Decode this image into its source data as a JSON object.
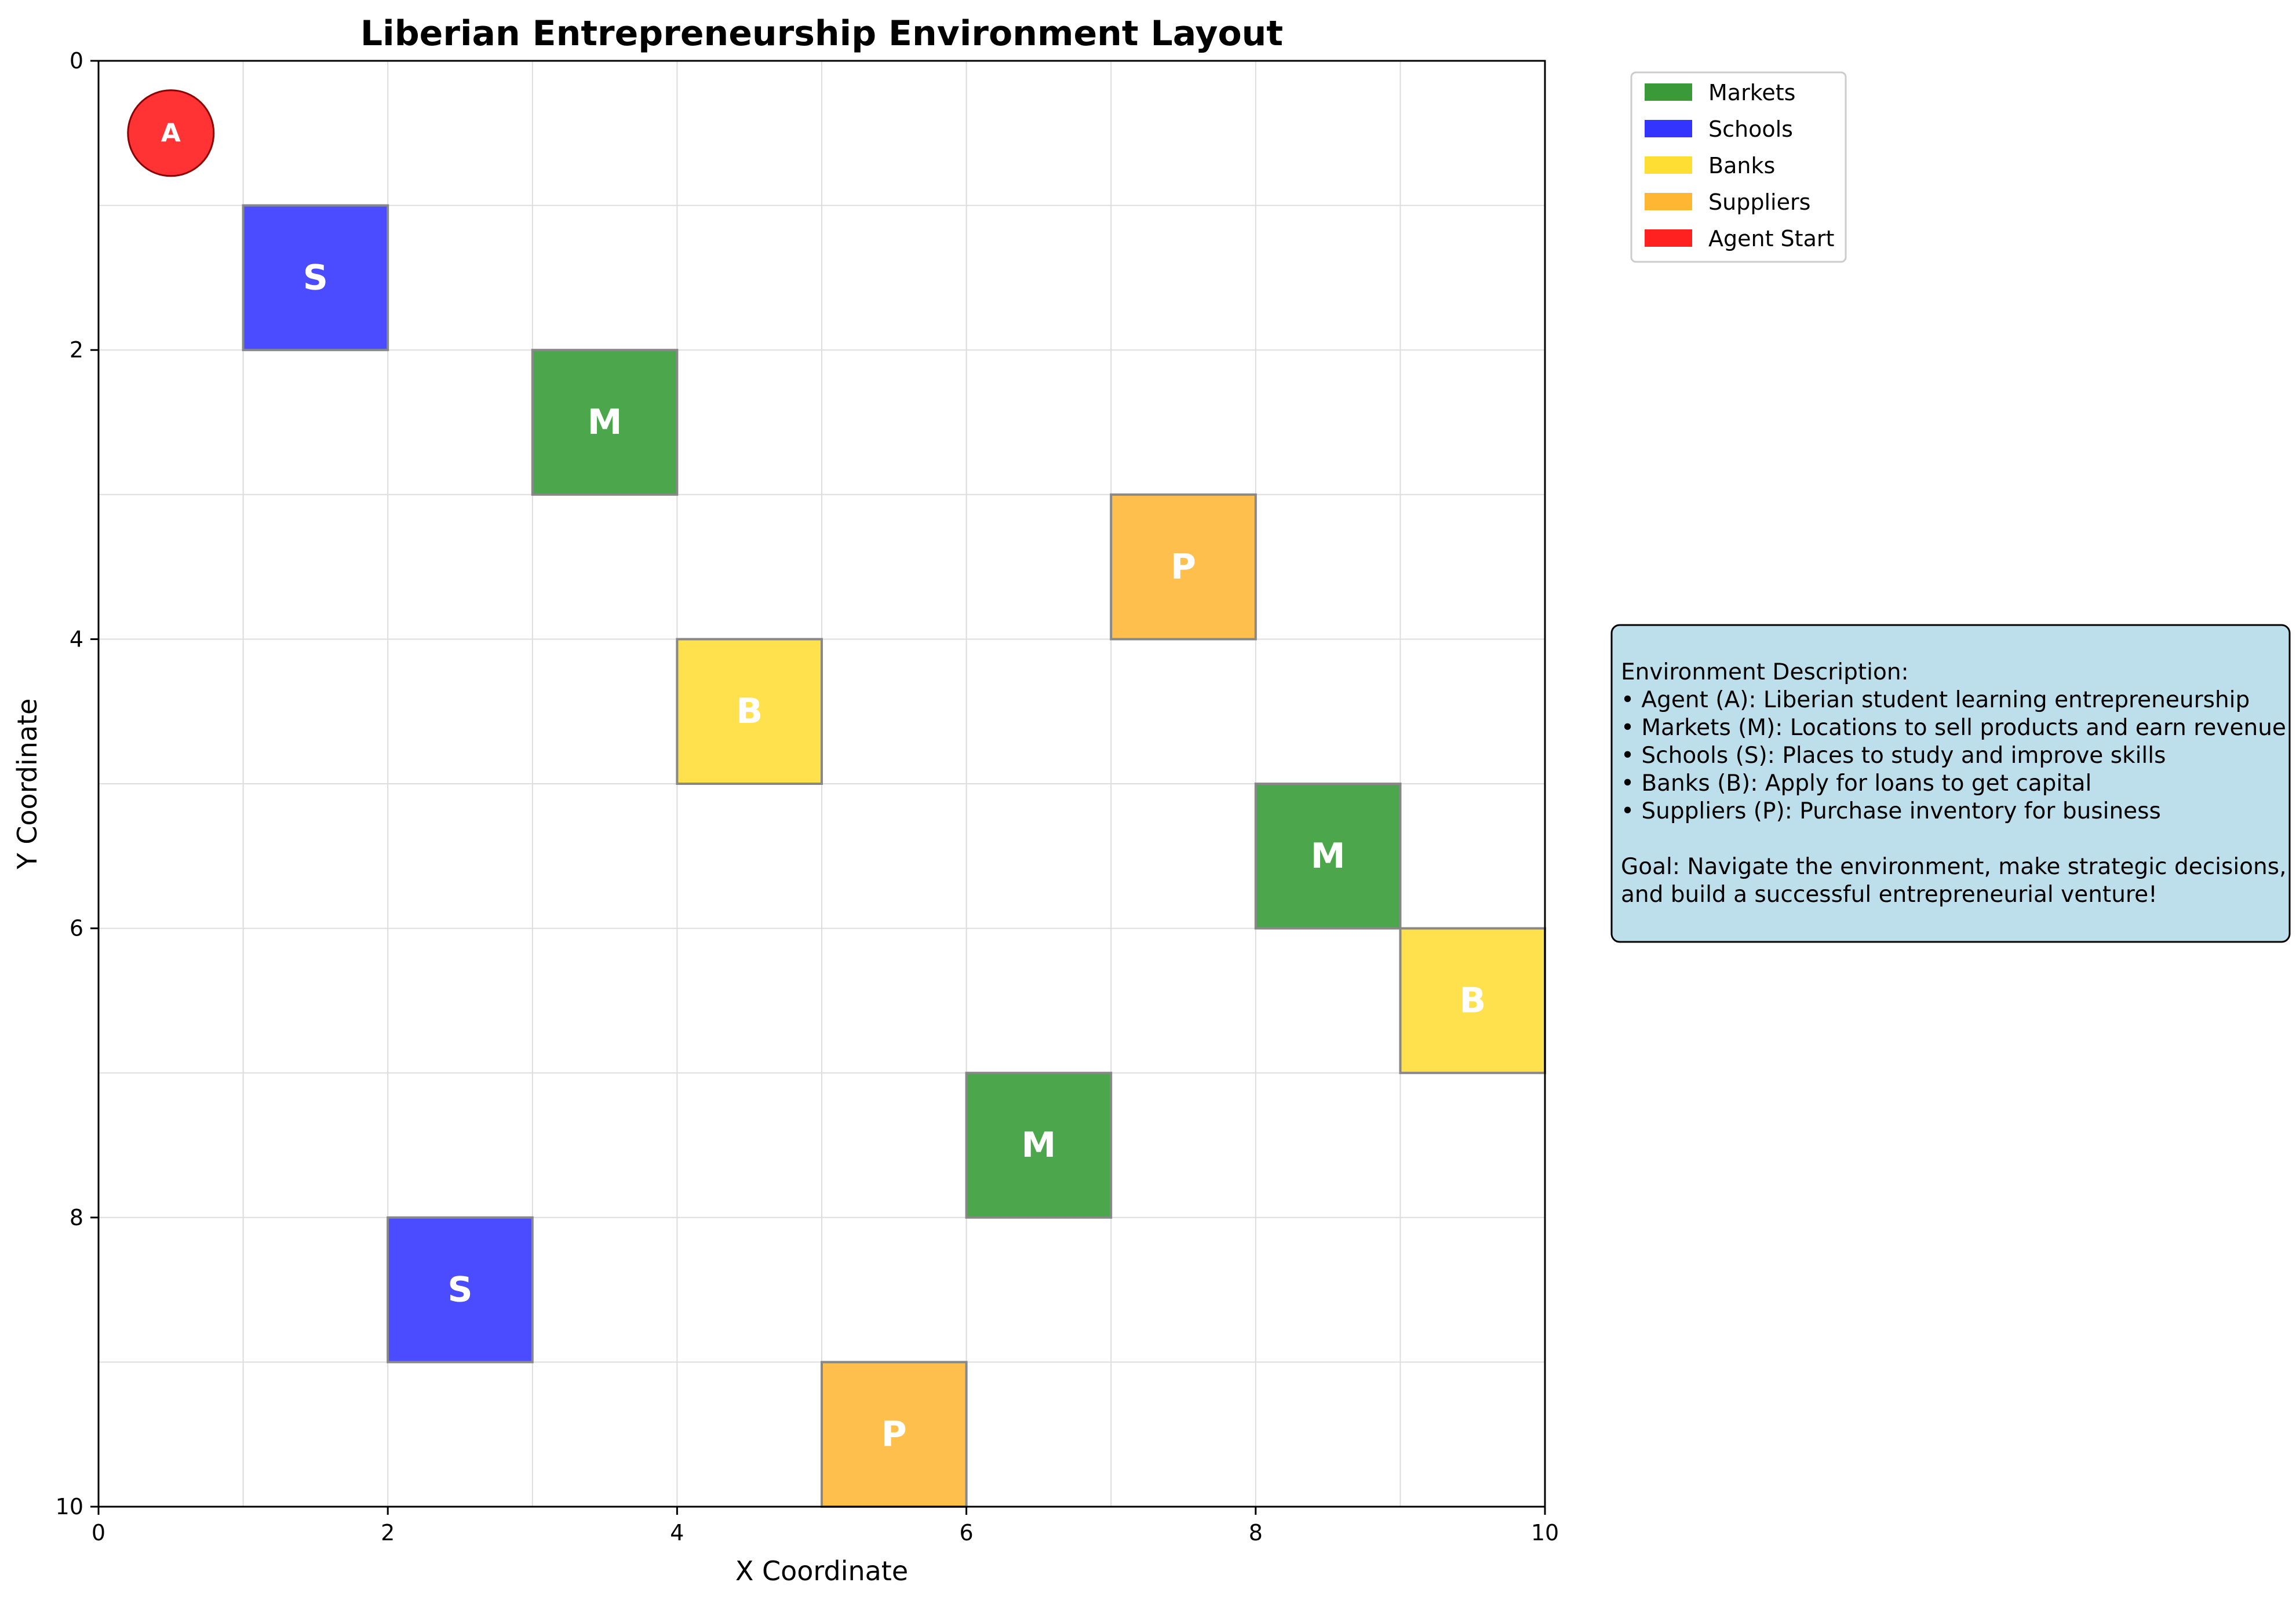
{
  "title": "Liberian Entrepreneurship Environment Layout",
  "chart_data": {
    "type": "grid",
    "xlabel": "X Coordinate",
    "ylabel": "Y Coordinate",
    "xlim": [
      0,
      10
    ],
    "ylim": [
      0,
      10
    ],
    "y_inverted": true,
    "grid": true,
    "x_ticks": [
      0,
      2,
      4,
      6,
      8,
      10
    ],
    "y_ticks": [
      0,
      2,
      4,
      6,
      8,
      10
    ],
    "agent": {
      "label": "A",
      "x": 0.5,
      "y": 0.5,
      "color": "#ff2020"
    },
    "cells": [
      {
        "type": "Schools",
        "label": "S",
        "x": 1,
        "y": 1
      },
      {
        "type": "Markets",
        "label": "M",
        "x": 3,
        "y": 2
      },
      {
        "type": "Suppliers",
        "label": "P",
        "x": 7,
        "y": 3
      },
      {
        "type": "Banks",
        "label": "B",
        "x": 4,
        "y": 4
      },
      {
        "type": "Markets",
        "label": "M",
        "x": 8,
        "y": 5
      },
      {
        "type": "Banks",
        "label": "B",
        "x": 9,
        "y": 6
      },
      {
        "type": "Markets",
        "label": "M",
        "x": 6,
        "y": 7
      },
      {
        "type": "Schools",
        "label": "S",
        "x": 2,
        "y": 8
      },
      {
        "type": "Suppliers",
        "label": "P",
        "x": 5,
        "y": 9
      }
    ],
    "legend": {
      "placement": "upper-right-outside",
      "entries": [
        {
          "name": "Markets",
          "color": "#3a9a3a"
        },
        {
          "name": "Schools",
          "color": "#3434ff"
        },
        {
          "name": "Banks",
          "color": "#ffde33"
        },
        {
          "name": "Suppliers",
          "color": "#ffb733"
        },
        {
          "name": "Agent Start",
          "color": "#ff2020"
        }
      ]
    }
  },
  "colors": {
    "Markets": "#4ca64c",
    "Schools": "#4b4bff",
    "Banks": "#ffe14d",
    "Suppliers": "#ffbf4d",
    "agent": "#ff3333",
    "description_box": "#add8e6"
  },
  "description": {
    "lines": [
      "Environment Description:",
      "• Agent (A): Liberian student learning entrepreneurship",
      "• Markets (M): Locations to sell products and earn revenue",
      "• Schools (S): Places to study and improve skills",
      "• Banks (B): Apply for loans to get capital",
      "• Suppliers (P): Purchase inventory for business",
      "",
      "Goal: Navigate the environment, make strategic decisions,",
      "and build a successful entrepreneurial venture!"
    ]
  }
}
